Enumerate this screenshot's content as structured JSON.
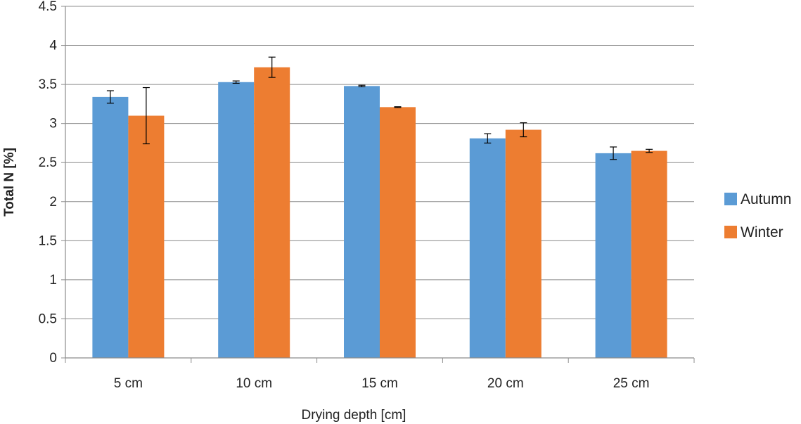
{
  "chart_data": {
    "type": "bar",
    "title": "",
    "xlabel": "Drying depth [cm]",
    "ylabel": "Total N [%]",
    "categories": [
      "5 cm",
      "10 cm",
      "15 cm",
      "20 cm",
      "25 cm"
    ],
    "ylim": [
      0,
      4.5
    ],
    "yticks": [
      0,
      0.5,
      1,
      1.5,
      2,
      2.5,
      3,
      3.5,
      4,
      4.5
    ],
    "ytick_labels": [
      "0",
      "0.5",
      "1",
      "1.5",
      "2",
      "2.5",
      "3",
      "3.5",
      "4",
      "4.5"
    ],
    "grid": true,
    "legend_position": "right",
    "series": [
      {
        "name": "Autumn",
        "color": "#5b9bd5",
        "values": [
          3.34,
          3.53,
          3.48,
          2.81,
          2.62
        ],
        "errors": [
          0.08,
          0.015,
          0.01,
          0.06,
          0.08
        ]
      },
      {
        "name": "Winter",
        "color": "#ed7d31",
        "values": [
          3.1,
          3.72,
          3.21,
          2.92,
          2.65
        ],
        "errors": [
          0.36,
          0.13,
          0.005,
          0.09,
          0.02
        ]
      }
    ]
  }
}
